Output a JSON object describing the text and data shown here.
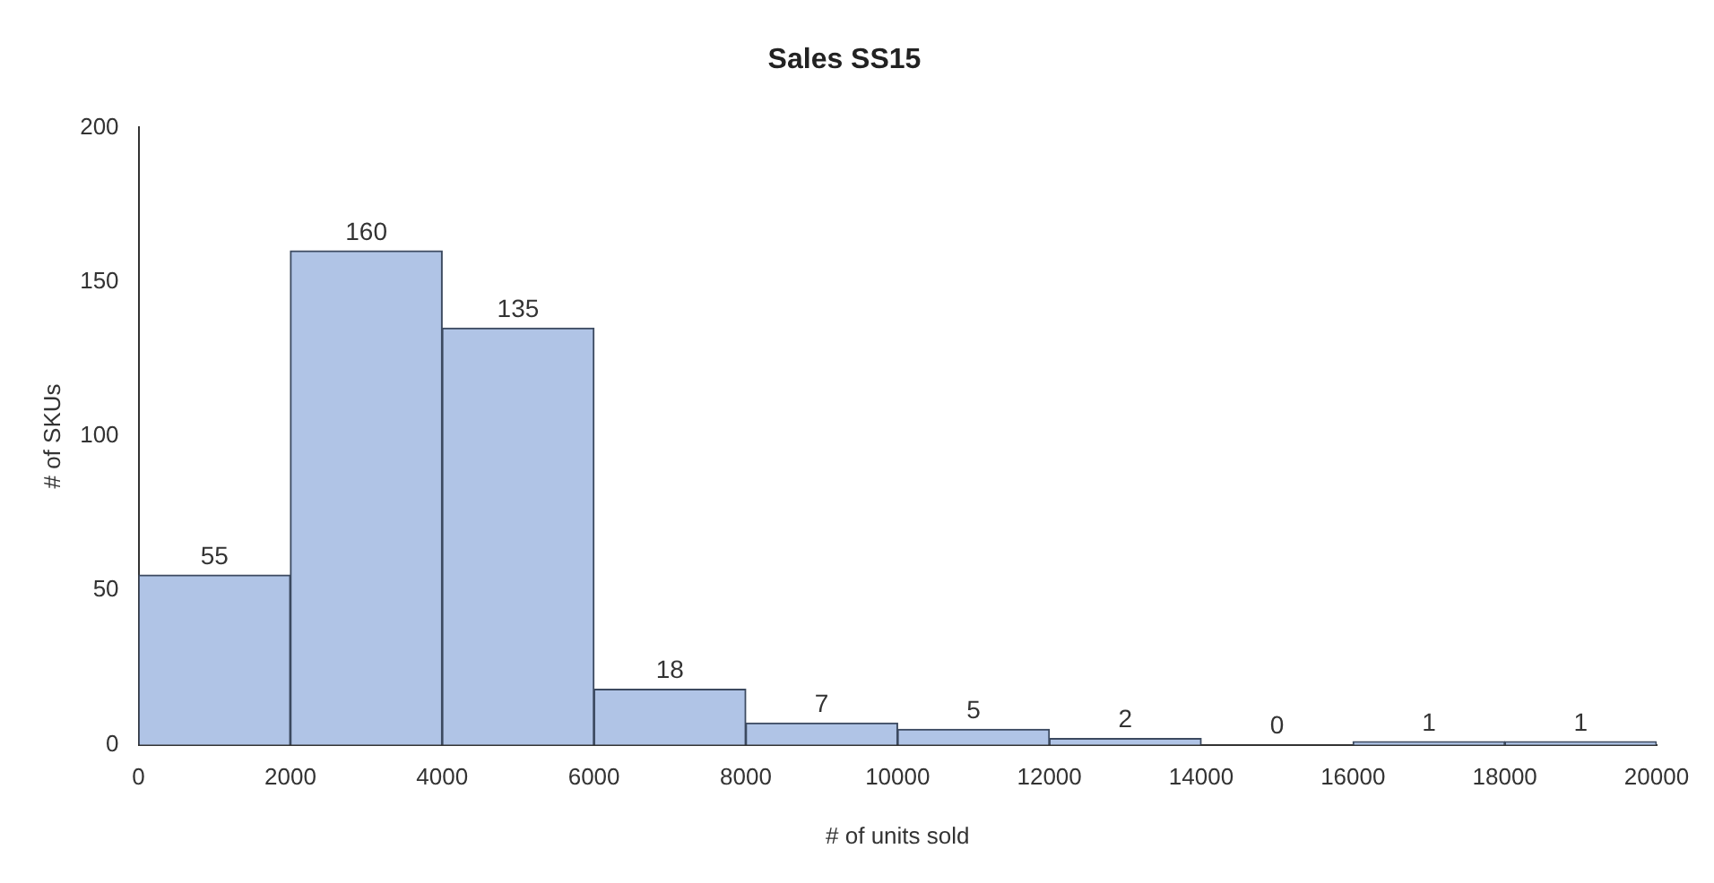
{
  "chart_data": {
    "type": "histogram",
    "title": "Sales SS15",
    "xlabel": "# of units sold",
    "ylabel": "# of SKUs",
    "bins": [
      0,
      2000,
      4000,
      6000,
      8000,
      10000,
      12000,
      14000,
      16000,
      18000,
      20000
    ],
    "values": [
      55,
      160,
      135,
      18,
      7,
      5,
      2,
      0,
      1,
      1
    ],
    "color": "#b0c4e6",
    "xlim": [
      0,
      20000
    ],
    "xticks": [
      0,
      2000,
      4000,
      6000,
      8000,
      10000,
      12000,
      14000,
      16000,
      18000,
      20000
    ],
    "ylim": [
      0,
      200
    ],
    "yticks": [
      0,
      50,
      100,
      150,
      200
    ],
    "data_labels": true,
    "grid": false,
    "legend": false
  }
}
